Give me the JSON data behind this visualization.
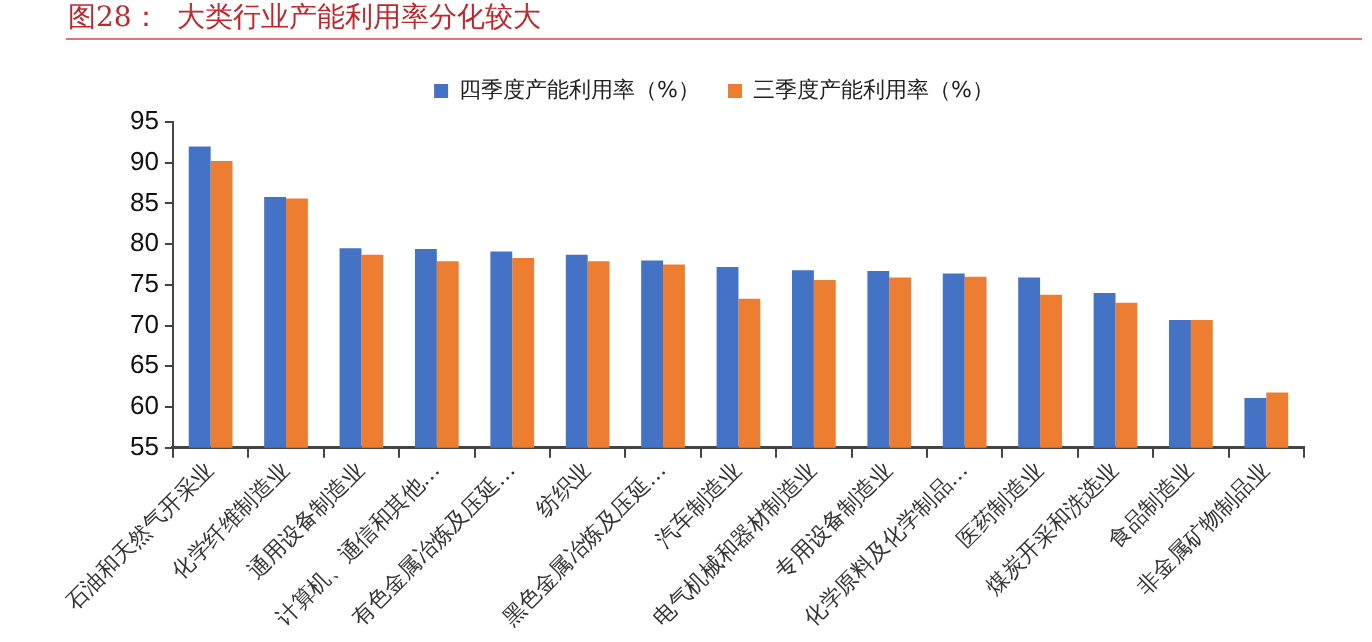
{
  "chart_data": {
    "type": "bar",
    "title": "图28：  大类行业产能利用率分化较大",
    "categories": [
      "石油和天然气开采业",
      "化学纤维制造业",
      "通用设备制造业",
      "计算机、通信和其他…",
      "有色金属冶炼及压延…",
      "纺织业",
      "黑色金属冶炼及压延…",
      "汽车制造业",
      "电气机械和器材制造业",
      "专用设备制造业",
      "化学原料及化学制品…",
      "医药制造业",
      "煤炭开采和洗选业",
      "食品制造业",
      "非金属矿物制品业"
    ],
    "series": [
      {
        "name": "四季度产能利用率（%）",
        "color": "#4472c4",
        "values": [
          92.0,
          85.8,
          79.5,
          79.4,
          79.1,
          78.7,
          78.0,
          77.2,
          76.8,
          76.7,
          76.4,
          75.9,
          74.0,
          70.7,
          61.1
        ]
      },
      {
        "name": "三季度产能利用率（%）",
        "color": "#ed7d31",
        "values": [
          90.2,
          85.6,
          78.7,
          77.9,
          78.3,
          77.9,
          77.5,
          73.3,
          75.6,
          75.9,
          76.0,
          73.8,
          72.8,
          70.7,
          61.8
        ]
      }
    ],
    "ylim": [
      55,
      95
    ],
    "yticks": [
      55,
      60,
      65,
      70,
      75,
      80,
      85,
      90,
      95
    ],
    "grid": false,
    "legend": "top"
  }
}
